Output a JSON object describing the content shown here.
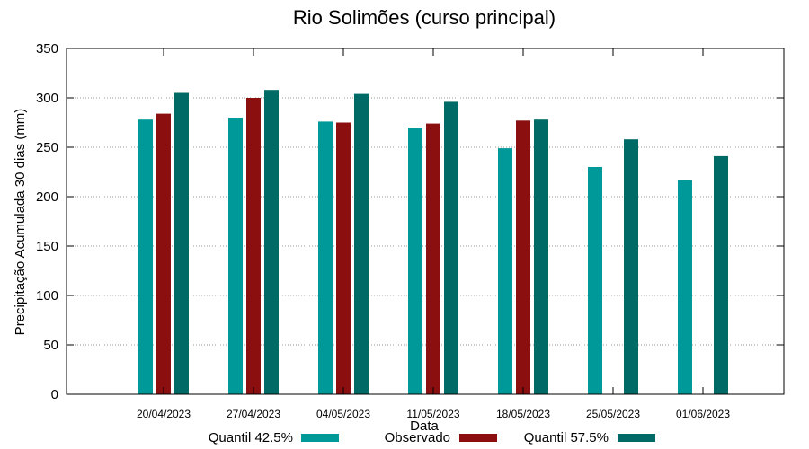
{
  "chart_data": {
    "type": "bar",
    "title": "Rio Solimões (curso principal)",
    "xlabel": "Data",
    "ylabel": "Precipitação Acumulada 30 dias (mm)",
    "ylim": [
      0,
      350
    ],
    "yticks": [
      0,
      50,
      100,
      150,
      200,
      250,
      300,
      350
    ],
    "grid": true,
    "legend_position": "bottom",
    "categories": [
      "20/04/2023",
      "27/04/2023",
      "04/05/2023",
      "11/05/2023",
      "18/05/2023",
      "25/05/2023",
      "01/06/2023"
    ],
    "series": [
      {
        "name": "Quantil 42.5%",
        "color": "#009999",
        "values": [
          278,
          280,
          276,
          270,
          249,
          230,
          217
        ]
      },
      {
        "name": "Observado",
        "color": "#8b0f0f",
        "values": [
          284,
          300,
          275,
          274,
          277,
          null,
          null
        ]
      },
      {
        "name": "Quantil 57.5%",
        "color": "#006b66",
        "values": [
          305,
          308,
          304,
          296,
          278,
          258,
          241
        ]
      }
    ]
  }
}
